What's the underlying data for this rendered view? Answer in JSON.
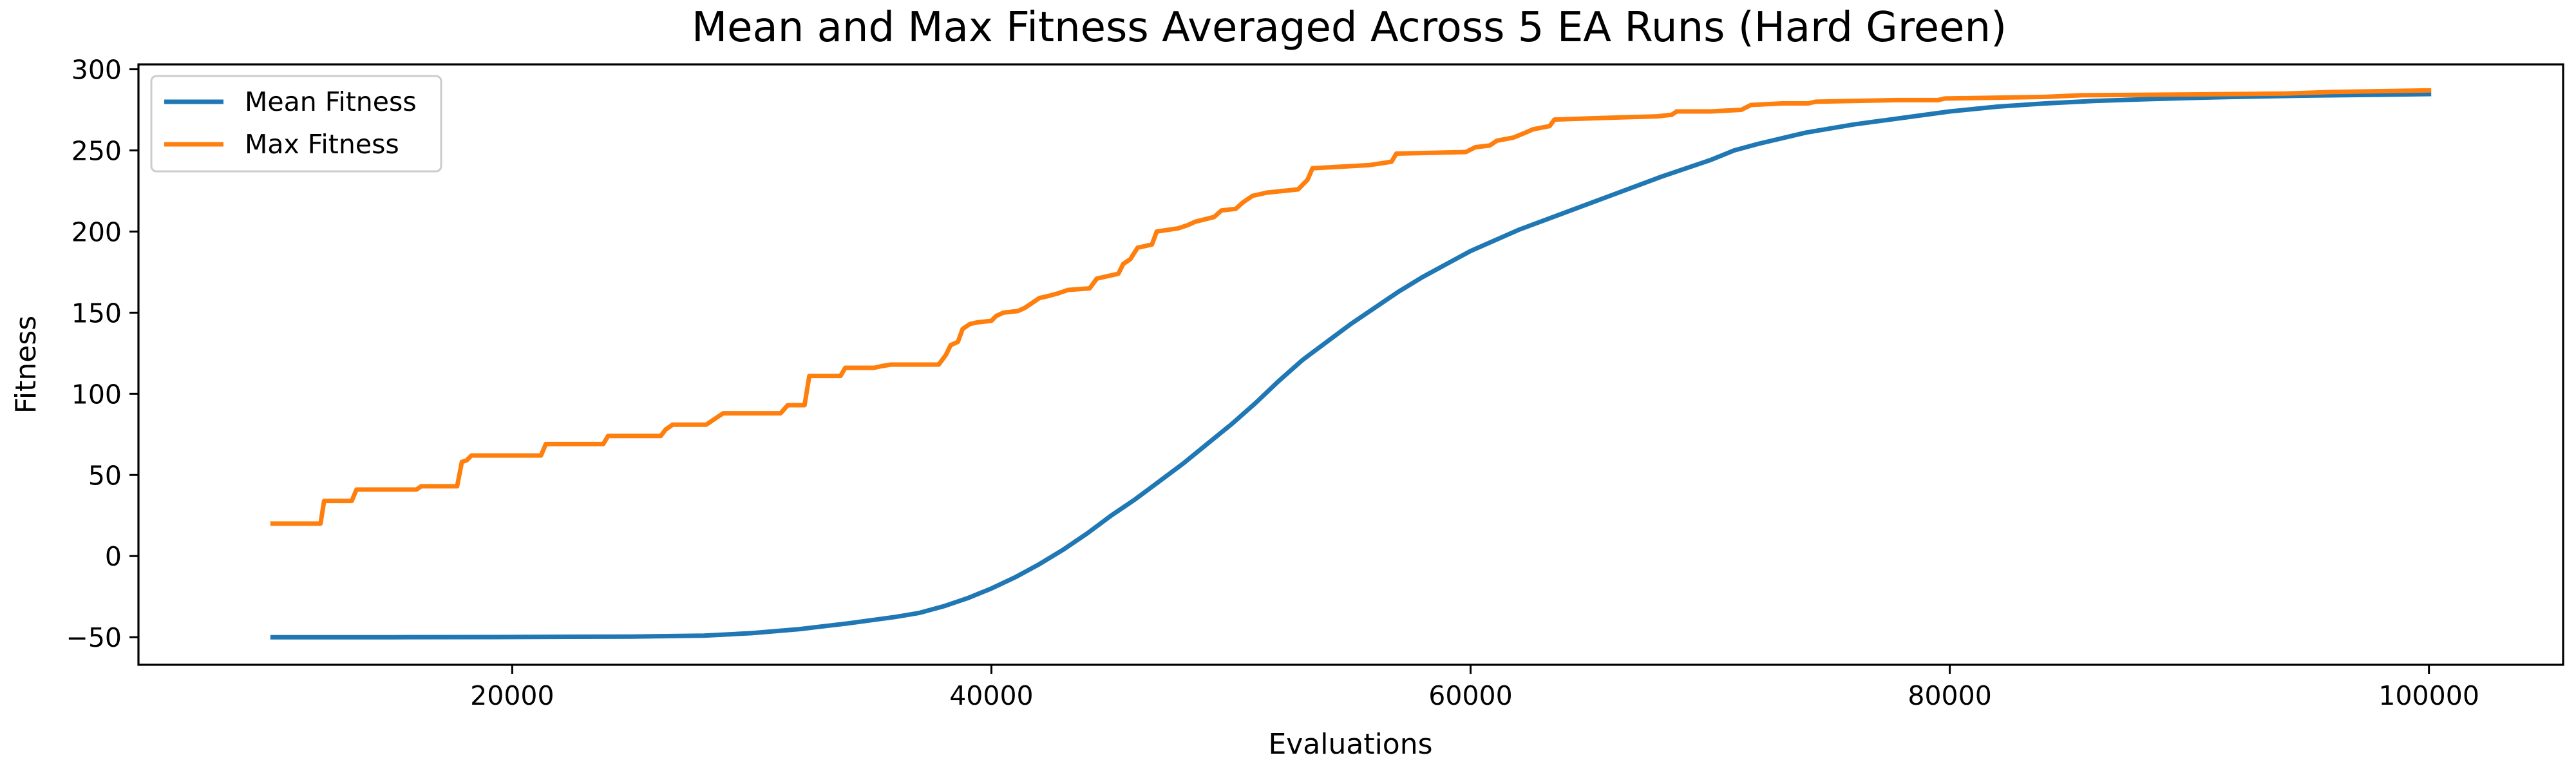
{
  "chart_data": {
    "type": "line",
    "title": "Mean and Max Fitness Averaged Across 5 EA Runs (Hard Green)",
    "xlabel": "Evaluations",
    "ylabel": "Fitness",
    "xlim": [
      4400,
      105600
    ],
    "ylim": [
      -67,
      303
    ],
    "xticks": [
      20000,
      40000,
      60000,
      80000,
      100000
    ],
    "yticks": [
      -50,
      0,
      50,
      100,
      150,
      200,
      250,
      300
    ],
    "grid": false,
    "legend_position": "top-left",
    "series": [
      {
        "name": "Mean Fitness",
        "color": "#1f77b4",
        "points": [
          [
            10000,
            -50
          ],
          [
            15000,
            -50
          ],
          [
            20000,
            -49.9
          ],
          [
            25000,
            -49.6
          ],
          [
            28000,
            -49
          ],
          [
            30000,
            -47.5
          ],
          [
            32000,
            -45
          ],
          [
            34000,
            -41.5
          ],
          [
            36000,
            -37.5
          ],
          [
            37000,
            -35
          ],
          [
            38000,
            -31
          ],
          [
            39000,
            -26
          ],
          [
            40000,
            -20
          ],
          [
            41000,
            -13
          ],
          [
            42000,
            -5
          ],
          [
            43000,
            4
          ],
          [
            44000,
            14
          ],
          [
            45000,
            25
          ],
          [
            46000,
            35
          ],
          [
            47000,
            46
          ],
          [
            48000,
            57
          ],
          [
            49000,
            69
          ],
          [
            50000,
            81
          ],
          [
            51000,
            94
          ],
          [
            52000,
            108
          ],
          [
            53000,
            121
          ],
          [
            54000,
            132
          ],
          [
            55000,
            143
          ],
          [
            56000,
            153
          ],
          [
            57000,
            163
          ],
          [
            58000,
            172
          ],
          [
            59000,
            180
          ],
          [
            60000,
            188
          ],
          [
            62000,
            201
          ],
          [
            64000,
            212
          ],
          [
            66000,
            223
          ],
          [
            68000,
            234
          ],
          [
            70000,
            244
          ],
          [
            71000,
            250
          ],
          [
            72000,
            254
          ],
          [
            74000,
            261
          ],
          [
            76000,
            266
          ],
          [
            78000,
            270
          ],
          [
            80000,
            274
          ],
          [
            82000,
            277
          ],
          [
            84000,
            279
          ],
          [
            86000,
            280.5
          ],
          [
            88000,
            281.5
          ],
          [
            90000,
            282.3
          ],
          [
            92000,
            283
          ],
          [
            95000,
            283.8
          ],
          [
            98000,
            284.3
          ],
          [
            100000,
            284.7
          ]
        ]
      },
      {
        "name": "Max Fitness",
        "color": "#ff7f0e",
        "points": [
          [
            10000,
            20
          ],
          [
            12000,
            20
          ],
          [
            12150,
            34
          ],
          [
            13300,
            34
          ],
          [
            13500,
            41
          ],
          [
            16000,
            41
          ],
          [
            16200,
            43
          ],
          [
            17700,
            43
          ],
          [
            17900,
            58
          ],
          [
            18100,
            59
          ],
          [
            18300,
            62
          ],
          [
            21200,
            62
          ],
          [
            21400,
            69
          ],
          [
            23800,
            69
          ],
          [
            24000,
            74
          ],
          [
            26200,
            74
          ],
          [
            26400,
            78
          ],
          [
            26700,
            81
          ],
          [
            28100,
            81
          ],
          [
            28400,
            84
          ],
          [
            28800,
            88
          ],
          [
            31200,
            88
          ],
          [
            31500,
            93
          ],
          [
            32200,
            93
          ],
          [
            32400,
            111
          ],
          [
            33700,
            111
          ],
          [
            33900,
            116
          ],
          [
            35100,
            116
          ],
          [
            35400,
            117
          ],
          [
            35800,
            118
          ],
          [
            37800,
            118
          ],
          [
            38100,
            124
          ],
          [
            38300,
            130
          ],
          [
            38600,
            132
          ],
          [
            38800,
            140
          ],
          [
            39100,
            143
          ],
          [
            39400,
            144
          ],
          [
            40000,
            145
          ],
          [
            40200,
            148
          ],
          [
            40500,
            150
          ],
          [
            41100,
            151
          ],
          [
            41400,
            153
          ],
          [
            41700,
            156
          ],
          [
            42000,
            159
          ],
          [
            42300,
            160
          ],
          [
            42800,
            162
          ],
          [
            43200,
            164
          ],
          [
            44100,
            165
          ],
          [
            44400,
            171
          ],
          [
            45300,
            174
          ],
          [
            45500,
            180
          ],
          [
            45800,
            183
          ],
          [
            46100,
            190
          ],
          [
            46700,
            192
          ],
          [
            46900,
            200
          ],
          [
            47800,
            202
          ],
          [
            48200,
            204
          ],
          [
            48500,
            206
          ],
          [
            49300,
            209
          ],
          [
            49600,
            213
          ],
          [
            50200,
            214
          ],
          [
            50500,
            218
          ],
          [
            50900,
            222
          ],
          [
            51500,
            224
          ],
          [
            52800,
            226
          ],
          [
            53200,
            232
          ],
          [
            53400,
            239
          ],
          [
            55800,
            241
          ],
          [
            56700,
            243
          ],
          [
            56900,
            248
          ],
          [
            59800,
            249
          ],
          [
            60200,
            252
          ],
          [
            60800,
            253
          ],
          [
            61100,
            256
          ],
          [
            61800,
            258
          ],
          [
            62300,
            261
          ],
          [
            62600,
            263
          ],
          [
            63300,
            265
          ],
          [
            63500,
            269
          ],
          [
            65500,
            270
          ],
          [
            67800,
            271
          ],
          [
            68400,
            272
          ],
          [
            68600,
            274
          ],
          [
            70000,
            274
          ],
          [
            71300,
            275
          ],
          [
            71700,
            278
          ],
          [
            73000,
            279
          ],
          [
            74100,
            279
          ],
          [
            74400,
            280
          ],
          [
            77800,
            281
          ],
          [
            79500,
            281
          ],
          [
            79800,
            282
          ],
          [
            84000,
            283
          ],
          [
            85500,
            284
          ],
          [
            90000,
            284.5
          ],
          [
            94000,
            285
          ],
          [
            96000,
            286
          ],
          [
            100000,
            287
          ]
        ]
      }
    ]
  }
}
